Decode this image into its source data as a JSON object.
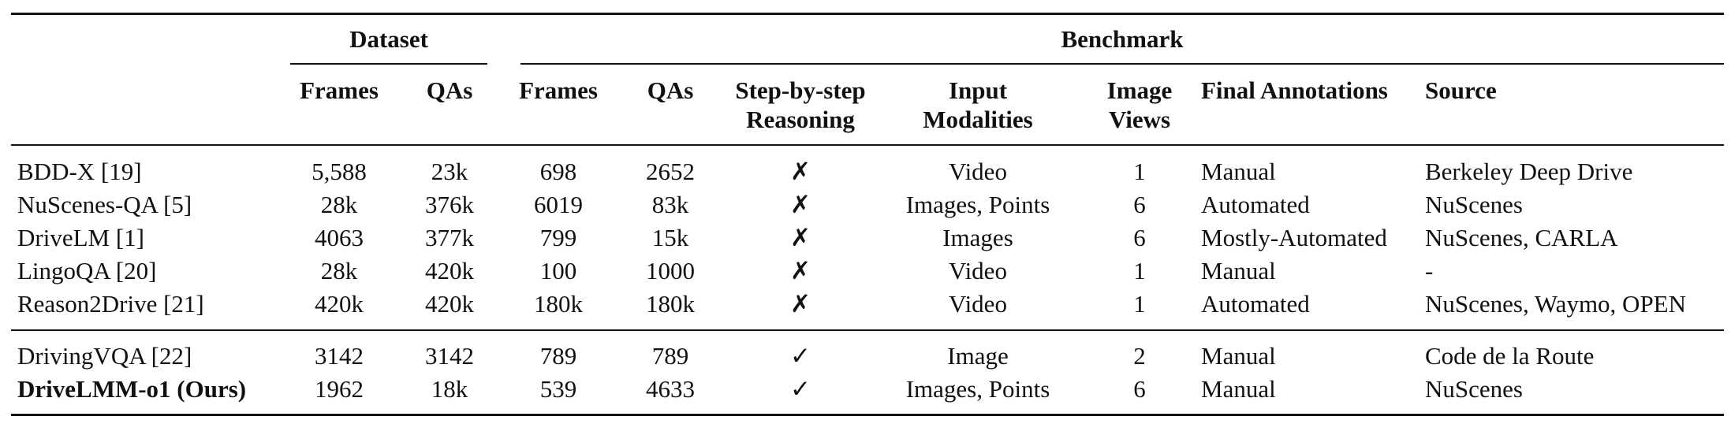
{
  "table": {
    "groups": {
      "dataset": "Dataset",
      "benchmark": "Benchmark"
    },
    "headers": {
      "ds_frames": "Frames",
      "ds_qas": "QAs",
      "bm_frames": "Frames",
      "bm_qas": "QAs",
      "step_1": "Step-by-step",
      "step_2": "Reasoning",
      "input_1": "Input",
      "input_2": "Modalities",
      "views_1": "Image",
      "views_2": "Views",
      "annotations": "Final Annotations",
      "source": "Source"
    },
    "rows": [
      {
        "name": "BDD-X [19]",
        "ds_frames": "5,588",
        "ds_qas": "23k",
        "bm_frames": "698",
        "bm_qas": "2652",
        "step": "✗",
        "input": "Video",
        "views": "1",
        "annotations": "Manual",
        "source": "Berkeley Deep Drive"
      },
      {
        "name": "NuScenes-QA [5]",
        "ds_frames": "28k",
        "ds_qas": "376k",
        "bm_frames": "6019",
        "bm_qas": "83k",
        "step": "✗",
        "input": "Images, Points",
        "views": "6",
        "annotations": "Automated",
        "source": "NuScenes"
      },
      {
        "name": "DriveLM [1]",
        "ds_frames": "4063",
        "ds_qas": "377k",
        "bm_frames": "799",
        "bm_qas": "15k",
        "step": "✗",
        "input": "Images",
        "views": "6",
        "annotations": "Mostly-Automated",
        "source": "NuScenes, CARLA"
      },
      {
        "name": "LingoQA [20]",
        "ds_frames": "28k",
        "ds_qas": "420k",
        "bm_frames": "100",
        "bm_qas": "1000",
        "step": "✗",
        "input": "Video",
        "views": "1",
        "annotations": "Manual",
        "source": "-"
      },
      {
        "name": "Reason2Drive [21]",
        "ds_frames": "420k",
        "ds_qas": "420k",
        "bm_frames": "180k",
        "bm_qas": "180k",
        "step": "✗",
        "input": "Video",
        "views": "1",
        "annotations": "Automated",
        "source": "NuScenes, Waymo, OPEN"
      },
      {
        "name": "DrivingVQA [22]",
        "ds_frames": "3142",
        "ds_qas": "3142",
        "bm_frames": "789",
        "bm_qas": "789",
        "step": "✓",
        "input": "Image",
        "views": "2",
        "annotations": "Manual",
        "source": "Code de la Route"
      },
      {
        "name": "DriveLMM-o1 (Ours)",
        "ds_frames": "1962",
        "ds_qas": "18k",
        "bm_frames": "539",
        "bm_qas": "4633",
        "step": "✓",
        "input": "Images, Points",
        "views": "6",
        "annotations": "Manual",
        "source": "NuScenes"
      }
    ]
  }
}
